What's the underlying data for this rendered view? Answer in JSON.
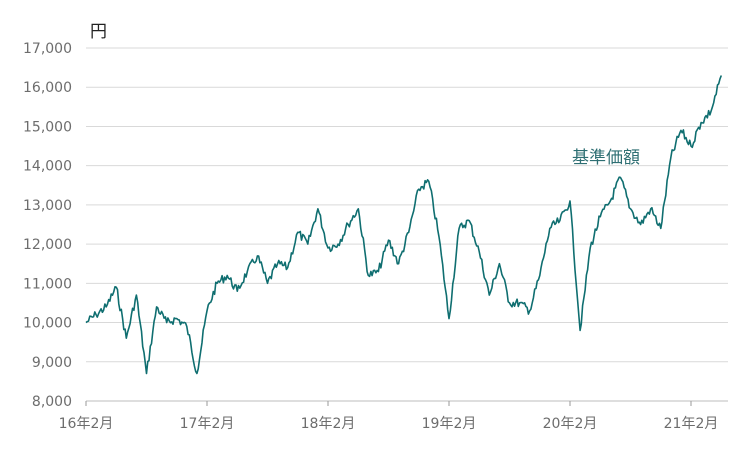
{
  "chart_data": {
    "type": "line",
    "title": "",
    "xlabel": "",
    "ylabel": "円",
    "ylim": [
      8000,
      17000
    ],
    "yticks": [
      8000,
      9000,
      10000,
      11000,
      12000,
      13000,
      14000,
      15000,
      16000,
      17000
    ],
    "ytick_labels": [
      "8,000",
      "9,000",
      "10,000",
      "11,000",
      "12,000",
      "13,000",
      "14,000",
      "15,000",
      "16,000",
      "17,000"
    ],
    "xticks": [
      "2016-02",
      "2017-02",
      "2018-02",
      "2019-02",
      "2020-02",
      "2021-02"
    ],
    "xtick_labels": [
      "16年2月",
      "17年2月",
      "18年2月",
      "19年2月",
      "20年2月",
      "21年2月"
    ],
    "xlim": [
      "2016-02",
      "2021-05"
    ],
    "grid": "horizontal",
    "line_color": "#0f6e70",
    "series": [
      {
        "name": "基準価額",
        "points": [
          [
            "2016-02",
            10000
          ],
          [
            "2016-03",
            10200
          ],
          [
            "2016-04",
            10400
          ],
          [
            "2016-05",
            10900
          ],
          [
            "2016-06",
            9600
          ],
          [
            "2016-07",
            10700
          ],
          [
            "2016-08",
            8700
          ],
          [
            "2016-09",
            10400
          ],
          [
            "2016-10",
            10000
          ],
          [
            "2016-11",
            10100
          ],
          [
            "2016-12",
            9900
          ],
          [
            "2017-01",
            8700
          ],
          [
            "2017-02",
            10300
          ],
          [
            "2017-03",
            11000
          ],
          [
            "2017-04",
            11200
          ],
          [
            "2017-05",
            10800
          ],
          [
            "2017-06",
            11300
          ],
          [
            "2017-07",
            11700
          ],
          [
            "2017-08",
            11000
          ],
          [
            "2017-09",
            11500
          ],
          [
            "2017-10",
            11400
          ],
          [
            "2017-11",
            12300
          ],
          [
            "2017-12",
            12000
          ],
          [
            "2018-01",
            12900
          ],
          [
            "2018-02",
            11900
          ],
          [
            "2018-03",
            12000
          ],
          [
            "2018-04",
            12500
          ],
          [
            "2018-05",
            12900
          ],
          [
            "2018-06",
            11200
          ],
          [
            "2018-07",
            11300
          ],
          [
            "2018-08",
            12100
          ],
          [
            "2018-09",
            11500
          ],
          [
            "2018-10",
            12300
          ],
          [
            "2018-11",
            13400
          ],
          [
            "2018-12",
            13600
          ],
          [
            "2019-01",
            12200
          ],
          [
            "2019-02",
            10100
          ],
          [
            "2019-03",
            12400
          ],
          [
            "2019-04",
            12600
          ],
          [
            "2019-05",
            11800
          ],
          [
            "2019-06",
            10700
          ],
          [
            "2019-07",
            11500
          ],
          [
            "2019-08",
            10500
          ],
          [
            "2019-09",
            10500
          ],
          [
            "2019-10",
            10300
          ],
          [
            "2019-11",
            11200
          ],
          [
            "2019-12",
            12400
          ],
          [
            "2020-01",
            12600
          ],
          [
            "2020-02",
            13100
          ],
          [
            "2020-03",
            9800
          ],
          [
            "2020-04",
            11900
          ],
          [
            "2020-05",
            12700
          ],
          [
            "2020-06",
            13100
          ],
          [
            "2020-07",
            13700
          ],
          [
            "2020-08",
            12900
          ],
          [
            "2020-09",
            12500
          ],
          [
            "2020-10",
            12900
          ],
          [
            "2020-11",
            12400
          ],
          [
            "2020-12",
            14200
          ],
          [
            "2021-01",
            14900
          ],
          [
            "2021-02",
            14500
          ],
          [
            "2021-03",
            15100
          ],
          [
            "2021-04",
            15400
          ],
          [
            "2021-05",
            16300
          ]
        ]
      }
    ]
  }
}
